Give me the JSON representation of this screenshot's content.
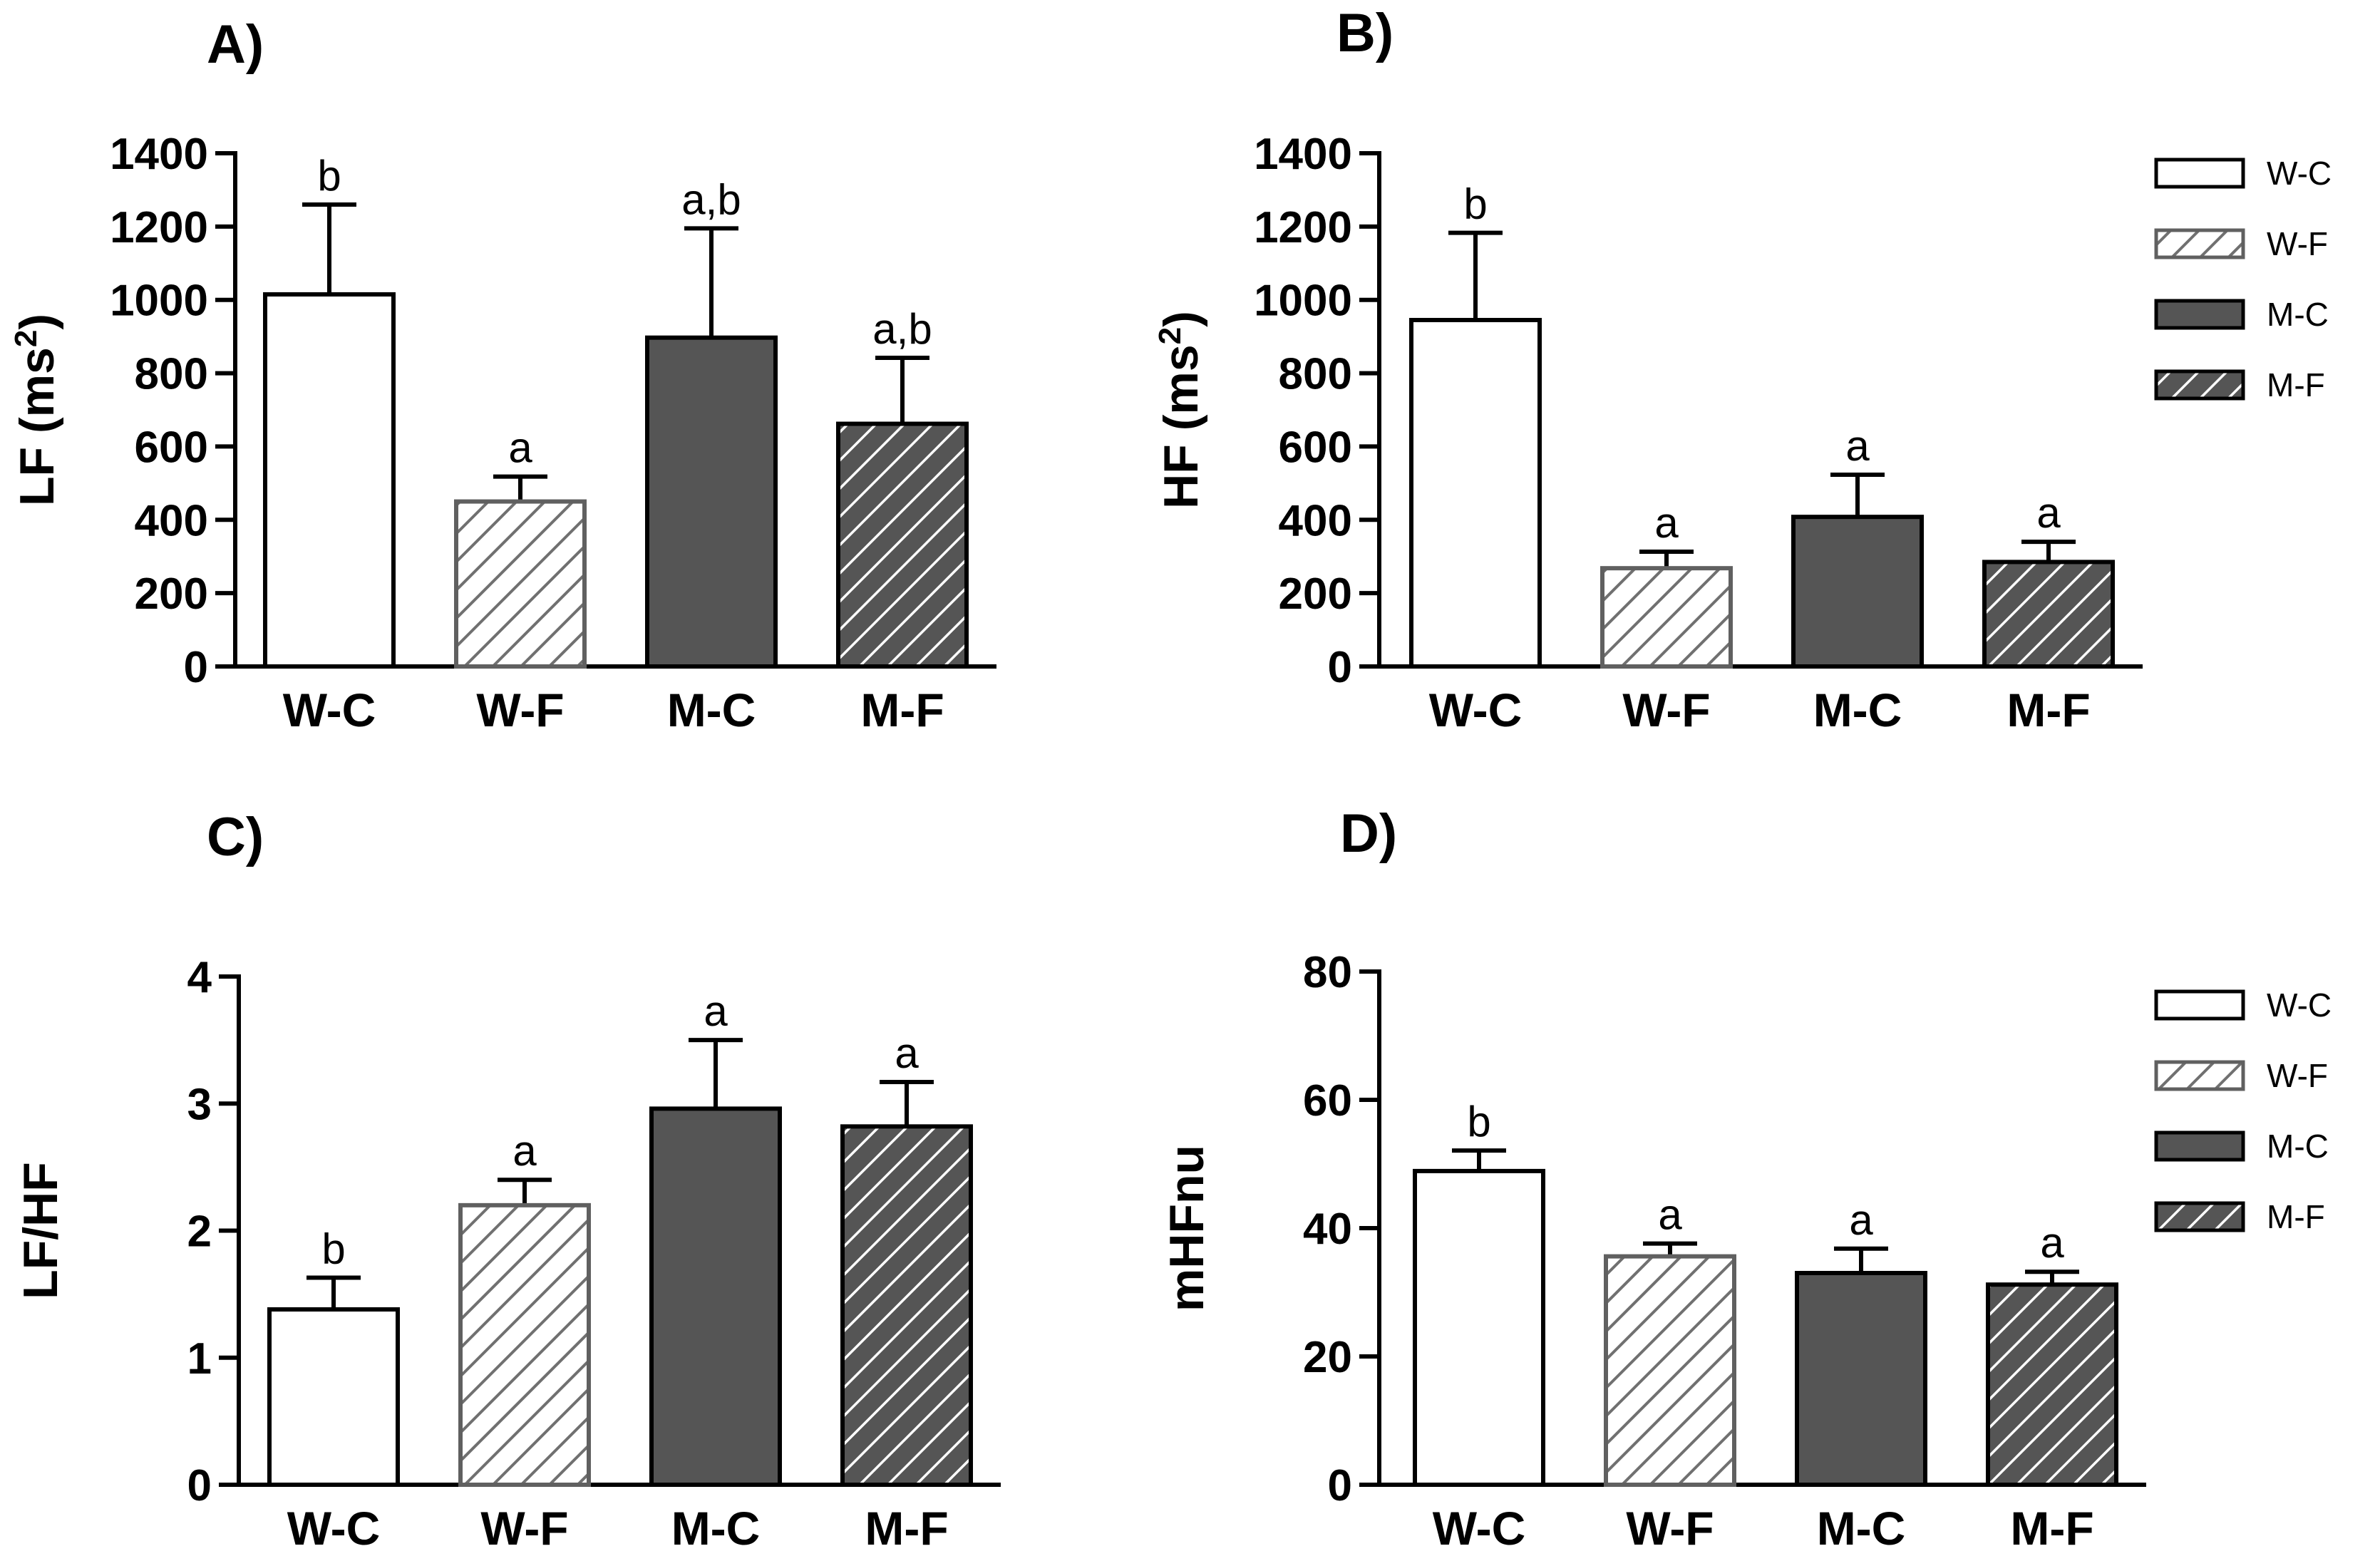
{
  "figure": {
    "background": "#ffffff"
  },
  "group_styles": {
    "W-C": {
      "fill": "#ffffff",
      "stroke": "#000000",
      "pattern": "none"
    },
    "W-F": {
      "fill": "#ffffff",
      "stroke": "#606060",
      "pattern": "hatch",
      "hatch_color": "#707070"
    },
    "M-C": {
      "fill": "#555555",
      "stroke": "#000000",
      "pattern": "none"
    },
    "M-F": {
      "fill": "#555555",
      "stroke": "#000000",
      "pattern": "hatch",
      "hatch_color": "#ffffff"
    }
  },
  "chart_data": [
    {
      "type": "bar",
      "panel": "A)",
      "ylabel": "LF (ms",
      "ylabel_sup": "2",
      "ylabel_close": ")",
      "categories": [
        "W-C",
        "W-F",
        "M-C",
        "M-F"
      ],
      "values": [
        1015,
        450,
        897,
        662
      ],
      "errors": [
        245,
        68,
        298,
        180
      ],
      "significance": [
        "b",
        "a",
        "a,b",
        "a,b"
      ],
      "ylim": [
        0,
        1400
      ],
      "yticks": [
        0,
        200,
        400,
        600,
        800,
        1000,
        1200,
        1400
      ],
      "ytick_labels": [
        "0",
        "200",
        "400",
        "600",
        "800",
        "1000",
        "1200",
        "1400"
      ],
      "legend": null
    },
    {
      "type": "bar",
      "panel": "B)",
      "ylabel": "HF (ms",
      "ylabel_sup": "2",
      "ylabel_close": ")",
      "categories": [
        "W-C",
        "W-F",
        "M-C",
        "M-F"
      ],
      "values": [
        945,
        268,
        408,
        285
      ],
      "errors": [
        238,
        45,
        115,
        55
      ],
      "significance": [
        "b",
        "a",
        "a",
        "a"
      ],
      "ylim": [
        0,
        1400
      ],
      "yticks": [
        0,
        200,
        400,
        600,
        800,
        1000,
        1200,
        1400
      ],
      "ytick_labels": [
        "0",
        "200",
        "400",
        "600",
        "800",
        "1000",
        "1200",
        "1400"
      ],
      "legend": {
        "placement": "right",
        "entries": [
          "W-C",
          "W-F",
          "M-C",
          "M-F"
        ]
      }
    },
    {
      "type": "bar",
      "panel": "C)",
      "ylabel": "LF/HF",
      "ylabel_sup": "",
      "ylabel_close": "",
      "categories": [
        "W-C",
        "W-F",
        "M-C",
        "M-F"
      ],
      "values": [
        1.38,
        2.2,
        2.96,
        2.82
      ],
      "errors": [
        0.25,
        0.2,
        0.54,
        0.35
      ],
      "significance": [
        "b",
        "a",
        "a",
        "a"
      ],
      "ylim": [
        0,
        4
      ],
      "yticks": [
        0,
        1,
        2,
        3,
        4
      ],
      "ytick_labels": [
        "0",
        "1",
        "2",
        "3",
        "4"
      ],
      "legend": null
    },
    {
      "type": "bar",
      "panel": "D)",
      "ylabel": "mHFnu",
      "ylabel_sup": "",
      "ylabel_close": "",
      "categories": [
        "W-C",
        "W-F",
        "M-C",
        "M-F"
      ],
      "values": [
        48.9,
        35.6,
        33.0,
        31.2
      ],
      "errors": [
        3.2,
        2.0,
        3.8,
        2.0
      ],
      "significance": [
        "b",
        "a",
        "a",
        "a"
      ],
      "ylim": [
        0,
        80
      ],
      "yticks": [
        0,
        20,
        40,
        60,
        80
      ],
      "ytick_labels": [
        "0",
        "20",
        "40",
        "60",
        "80"
      ],
      "legend": {
        "placement": "right",
        "entries": [
          "W-C",
          "W-F",
          "M-C",
          "M-F"
        ]
      }
    }
  ]
}
